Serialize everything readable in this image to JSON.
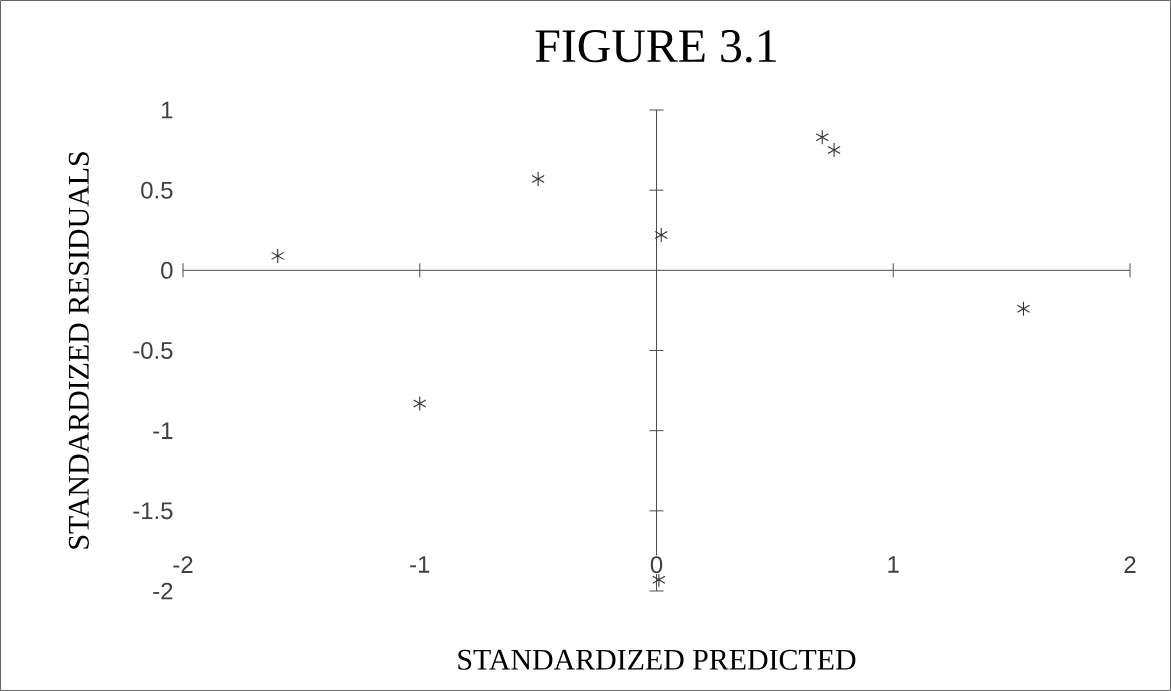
{
  "chart_data": {
    "type": "scatter",
    "title": "FIGURE 3.1",
    "xlabel": "STANDARDIZED PREDICTED",
    "ylabel": "STANDARDIZED RESIDUALS",
    "x": [
      -1.6,
      -0.5,
      -1.0,
      0.02,
      0.01,
      0.7,
      0.75,
      1.55
    ],
    "values": [
      0.09,
      0.57,
      -0.83,
      0.22,
      -1.93,
      0.83,
      0.75,
      -0.24
    ],
    "color": "#333333",
    "marker": "cross",
    "xlim": [
      -2,
      2
    ],
    "ylim": [
      -2,
      1
    ],
    "xticks": [
      -2,
      -1,
      0,
      1,
      2
    ],
    "yticks": [
      -2,
      -1.5,
      -1,
      -0.5,
      0,
      0.5,
      1
    ]
  }
}
